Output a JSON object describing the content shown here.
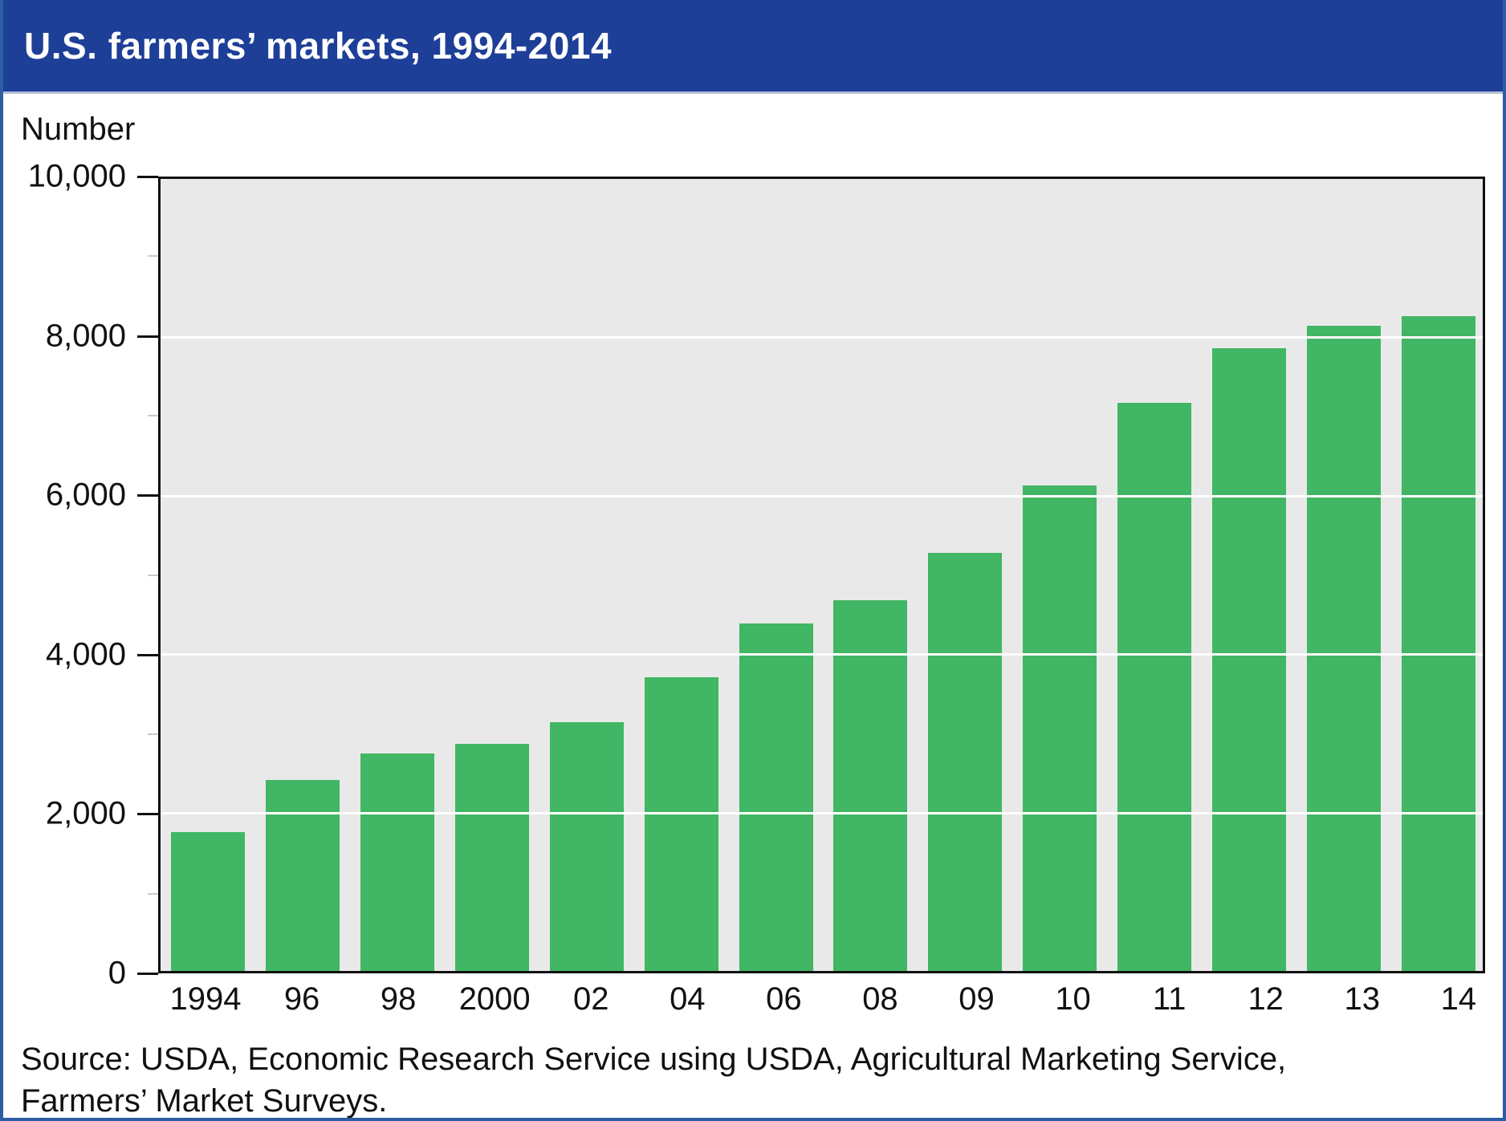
{
  "header": {
    "title": "U.S. farmers’ markets, 1994-2014"
  },
  "chart_data": {
    "type": "bar",
    "title": "U.S. farmers’ markets, 1994-2014",
    "ylabel": "Number",
    "xlabel": "",
    "ylim": [
      0,
      10000
    ],
    "categories": [
      "1994",
      "96",
      "98",
      "2000",
      "02",
      "04",
      "06",
      "08",
      "09",
      "10",
      "11",
      "12",
      "13",
      "14"
    ],
    "values": [
      1755,
      2410,
      2746,
      2863,
      3137,
      3706,
      4385,
      4685,
      5274,
      6132,
      7175,
      7864,
      8144,
      8268
    ],
    "ytick_major_values": [
      0,
      2000,
      4000,
      6000,
      8000,
      10000
    ],
    "ytick_major_labels": [
      "0",
      "2,000",
      "4,000",
      "6,000",
      "8,000",
      "10,000"
    ],
    "ytick_minor_values": [
      1000,
      3000,
      5000,
      7000,
      9000
    ],
    "grid": "horizontal white gridlines at major ticks",
    "legend_position": "none",
    "bar_color": "#41b664",
    "plot_background": "#e9e9e9"
  },
  "footer": {
    "source_line1": "Source: USDA, Economic Research Service using USDA, Agricultural Marketing Service,",
    "source_line2": "Farmers’ Market Surveys."
  },
  "colors": {
    "banner_background": "#1e3f97",
    "banner_text": "#ffffff",
    "frame_border": "#2d5da4",
    "bar_green": "#41b664",
    "plot_background": "#e9e9e9",
    "gridline": "#ffffff",
    "axis_black": "#111111"
  }
}
